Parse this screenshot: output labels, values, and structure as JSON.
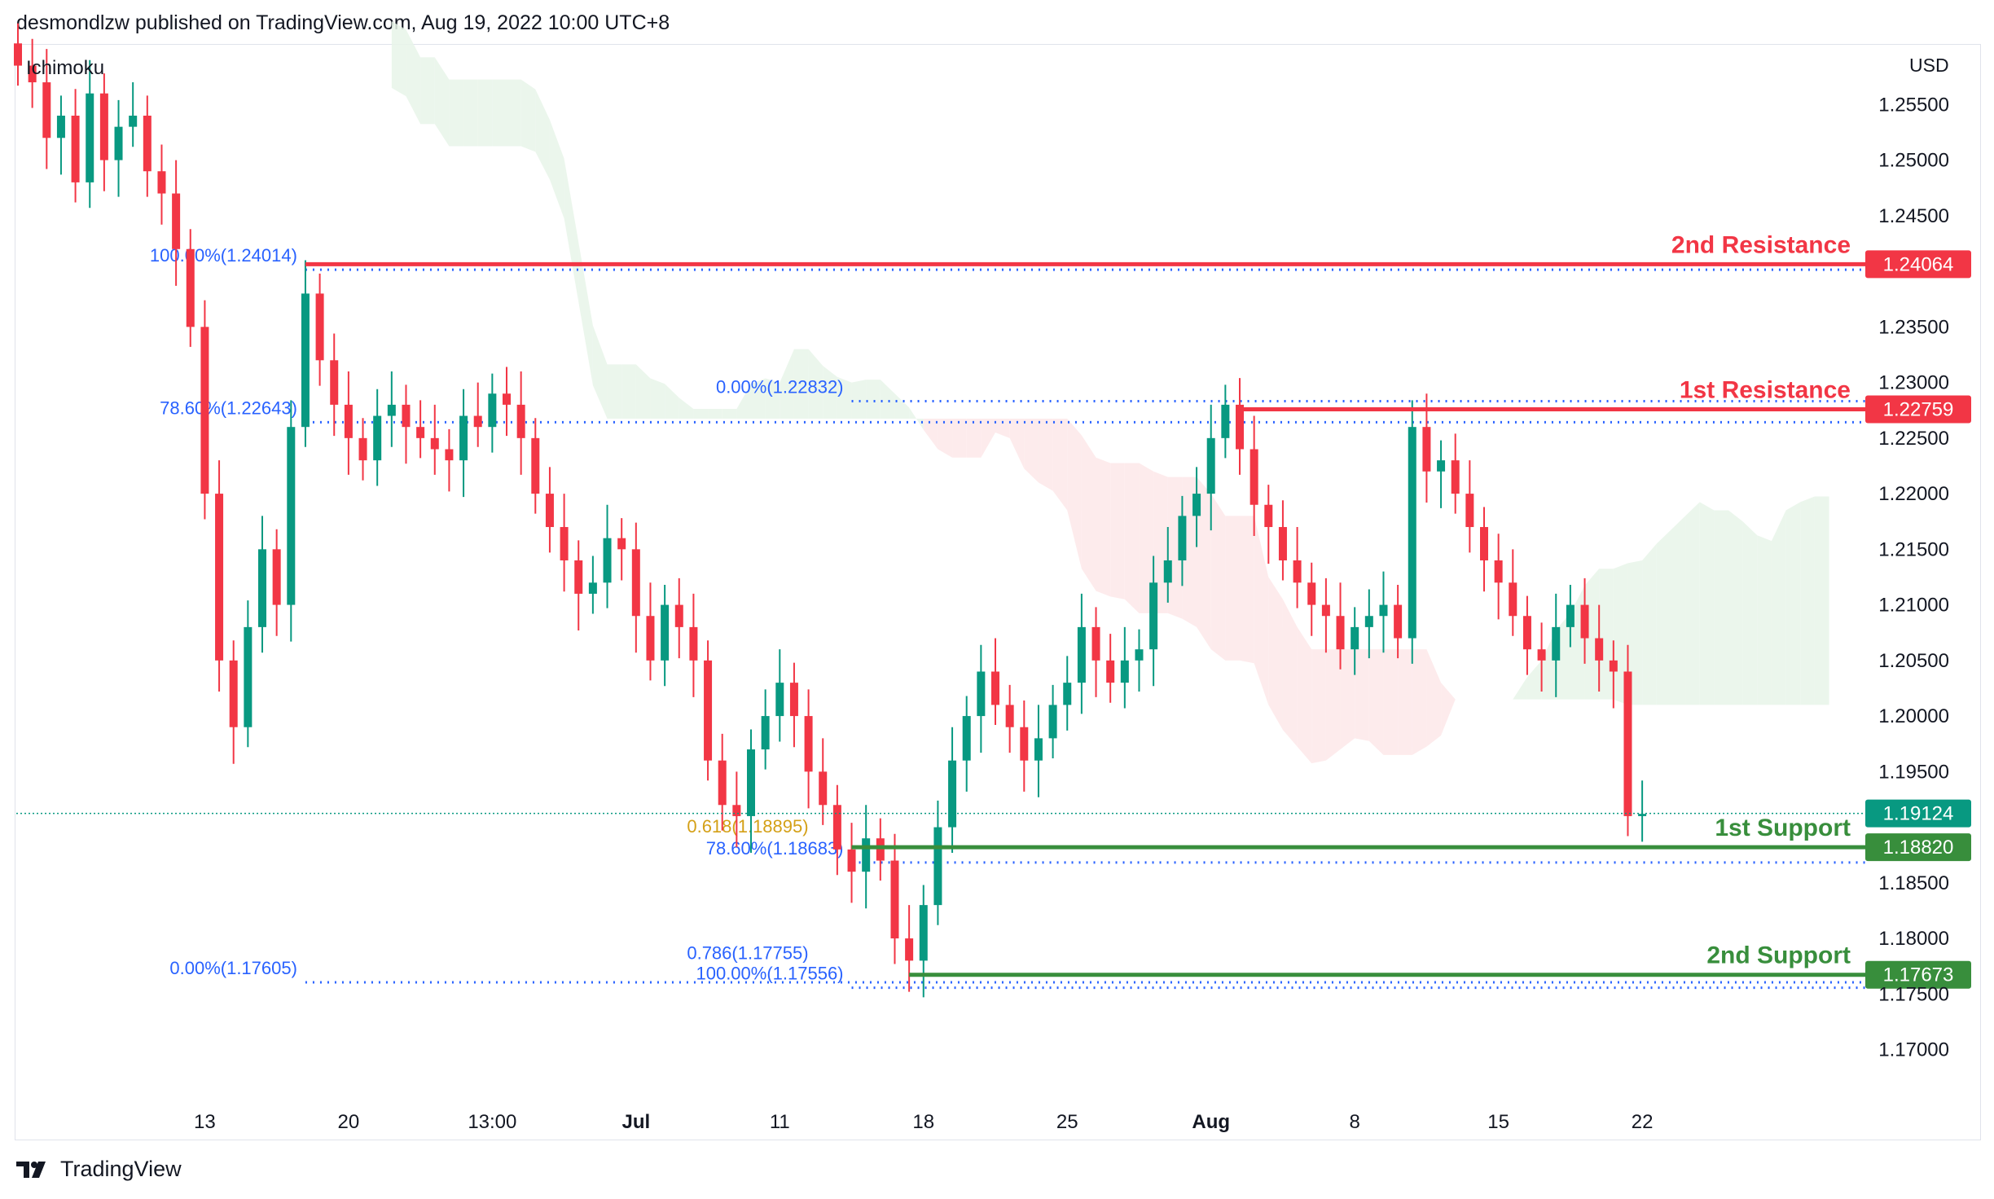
{
  "header": {
    "published_by": "desmondlzw published on TradingView.com, Aug 19, 2022 10:00 UTC+8"
  },
  "footer": {
    "brand": "TradingView",
    "logo_icon": "tradingview-logo-icon"
  },
  "colors": {
    "resistance": "#f23645",
    "support": "#388e3c",
    "fib": "#2962ff",
    "candle_up": "#089981",
    "candle_down": "#f23645",
    "cloud_bull": "#e8f5e9",
    "cloud_bear": "#fde7e9",
    "last_price": "#089981",
    "golden": "#d4a017"
  },
  "chart_data": {
    "type": "candlestick",
    "symbol_indicator": "Ichimoku",
    "currency": "USD",
    "y_axis": {
      "ylim": [
        1.1655,
        1.2603
      ],
      "ticks": [
        "1.25500",
        "1.25000",
        "1.24500",
        "1.23500",
        "1.23000",
        "1.22500",
        "1.22000",
        "1.21500",
        "1.21000",
        "1.20500",
        "1.20000",
        "1.19500",
        "1.18500",
        "1.18000",
        "1.17500",
        "1.17000"
      ]
    },
    "x_axis": {
      "ticks": [
        {
          "label": "13",
          "bar": 13
        },
        {
          "label": "20",
          "bar": 23
        },
        {
          "label": "13:00",
          "bar": 33
        },
        {
          "label": "Jul",
          "bar": 43
        },
        {
          "label": "11",
          "bar": 53
        },
        {
          "label": "18",
          "bar": 63
        },
        {
          "label": "25",
          "bar": 73
        },
        {
          "label": "Aug",
          "bar": 83
        },
        {
          "label": "8",
          "bar": 93
        },
        {
          "label": "15",
          "bar": 103
        },
        {
          "label": "22",
          "bar": 113
        }
      ],
      "bold": [
        "Jul",
        "Aug"
      ],
      "bar_count": 120
    },
    "levels": [
      {
        "name": "2nd Resistance",
        "price": "1.24064",
        "value": 1.24064,
        "kind": "resistance"
      },
      {
        "name": "1st Resistance",
        "price": "1.22759",
        "value": 1.22759,
        "kind": "resistance"
      },
      {
        "name": "1st Support",
        "price": "1.18820",
        "value": 1.1882,
        "kind": "support"
      },
      {
        "name": "2nd Support",
        "price": "1.17673",
        "value": 1.17673,
        "kind": "support"
      }
    ],
    "last_price": {
      "price": "1.19124",
      "value": 1.19124
    },
    "fib_retracements": [
      {
        "labels": [
          {
            "text": "100.00%(1.24014)",
            "value": 1.24014
          },
          {
            "text": "78.60%(1.22643)",
            "value": 1.22643
          },
          {
            "text": "0.00%(1.17605)",
            "value": 1.17605
          }
        ],
        "from_bar": 20
      },
      {
        "labels": [
          {
            "text": "0.00%(1.22832)",
            "value": 1.22832
          },
          {
            "text": "78.60%(1.18683)",
            "value": 1.18683
          },
          {
            "text": "100.00%(1.17556)",
            "value": 1.17556
          }
        ],
        "from_bar": 58
      }
    ],
    "extra_labels": [
      {
        "text": "0.618(1.18895)",
        "value": 1.18895,
        "color": "golden"
      },
      {
        "text": "0.786(1.17755)",
        "value": 1.17755,
        "color": "fib"
      }
    ],
    "close": [
      1.2585,
      1.257,
      1.252,
      1.254,
      1.248,
      1.256,
      1.25,
      1.253,
      1.254,
      1.249,
      1.247,
      1.242,
      1.235,
      1.22,
      1.205,
      1.199,
      1.208,
      1.215,
      1.21,
      1.226,
      1.238,
      1.232,
      1.228,
      1.225,
      1.223,
      1.227,
      1.228,
      1.226,
      1.225,
      1.224,
      1.223,
      1.227,
      1.226,
      1.229,
      1.228,
      1.225,
      1.22,
      1.217,
      1.214,
      1.211,
      1.212,
      1.216,
      1.215,
      1.209,
      1.205,
      1.21,
      1.208,
      1.205,
      1.196,
      1.192,
      1.191,
      1.197,
      1.2,
      1.203,
      1.2,
      1.195,
      1.192,
      1.188,
      1.186,
      1.189,
      1.187,
      1.18,
      1.178,
      1.183,
      1.19,
      1.196,
      1.2,
      1.204,
      1.201,
      1.199,
      1.196,
      1.198,
      1.201,
      1.203,
      1.208,
      1.205,
      1.203,
      1.205,
      1.206,
      1.212,
      1.214,
      1.218,
      1.22,
      1.225,
      1.228,
      1.224,
      1.219,
      1.217,
      1.214,
      1.212,
      1.21,
      1.209,
      1.206,
      1.208,
      1.209,
      1.21,
      1.207,
      1.226,
      1.222,
      1.223,
      1.22,
      1.217,
      1.214,
      1.212,
      1.209,
      1.206,
      1.205,
      1.208,
      1.21,
      1.207,
      1.205,
      1.204,
      1.191,
      1.1912
    ]
  }
}
